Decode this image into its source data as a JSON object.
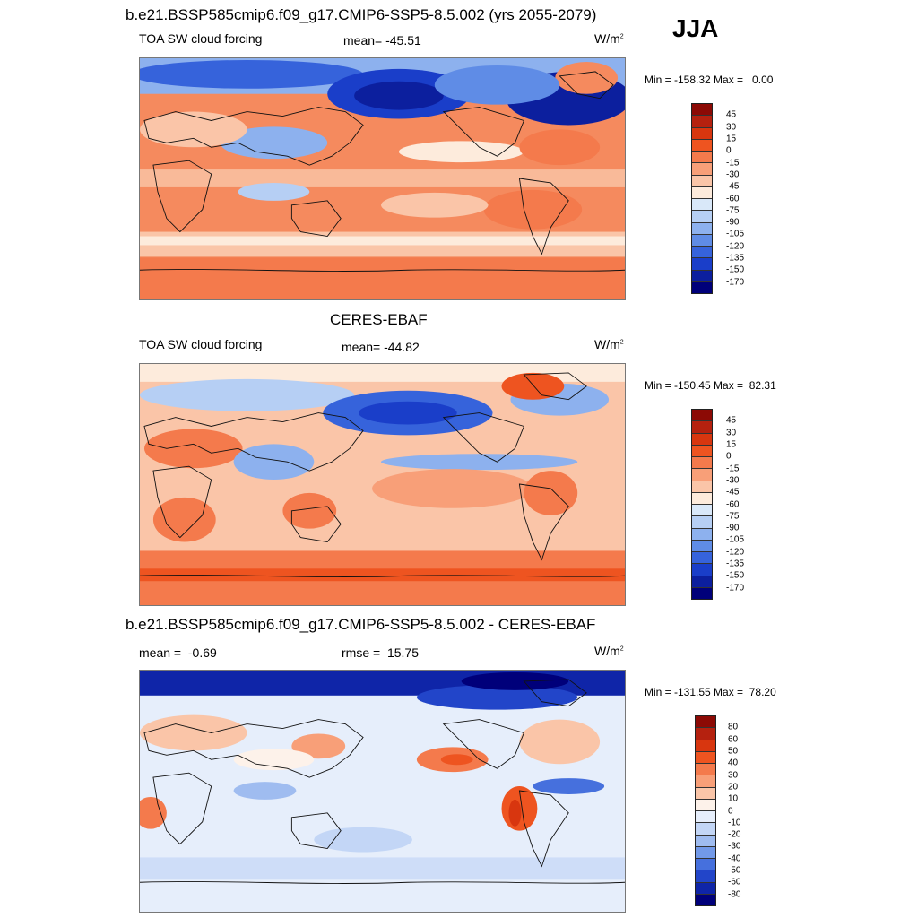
{
  "header": {
    "title": "b.e21.BSSP585cmip6.f09_g17.CMIP6-SSP5-8.5.002 (yrs 2055-2079)",
    "season": "JJA"
  },
  "panels": [
    {
      "variable": "TOA SW cloud forcing",
      "stat": "mean= -45.51",
      "units": "W/m",
      "units_sup": "2",
      "minmax": "Min = -158.32 Max =   0.00",
      "legend": {
        "labels": [
          "45",
          "30",
          "15",
          "0",
          "-15",
          "-30",
          "-45",
          "-60",
          "-75",
          "-90",
          "-105",
          "-120",
          "-135",
          "-150",
          "-170"
        ],
        "colors": [
          "#8c0a05",
          "#b5210f",
          "#d8360f",
          "#ee5420",
          "#f47a4c",
          "#f89f78",
          "#fac5a8",
          "#fdebdc",
          "#d9e8f9",
          "#b6cff4",
          "#8db1ee",
          "#5f8ce6",
          "#3663db",
          "#1a3ec9",
          "#0c1f9e",
          "#00007a"
        ]
      }
    },
    {
      "title": "CERES-EBAF",
      "variable": "TOA SW cloud forcing",
      "stat": "mean= -44.82",
      "units": "W/m",
      "units_sup": "2",
      "minmax": "Min = -150.45 Max =  82.31",
      "legend": {
        "labels": [
          "45",
          "30",
          "15",
          "0",
          "-15",
          "-30",
          "-45",
          "-60",
          "-75",
          "-90",
          "-105",
          "-120",
          "-135",
          "-150",
          "-170"
        ],
        "colors": [
          "#8c0a05",
          "#b5210f",
          "#d8360f",
          "#ee5420",
          "#f47a4c",
          "#f89f78",
          "#fac5a8",
          "#fdebdc",
          "#d9e8f9",
          "#b6cff4",
          "#8db1ee",
          "#5f8ce6",
          "#3663db",
          "#1a3ec9",
          "#0c1f9e",
          "#00007a"
        ]
      }
    },
    {
      "title": "b.e21.BSSP585cmip6.f09_g17.CMIP6-SSP5-8.5.002 - CERES-EBAF",
      "stat": "mean =  -0.69",
      "rmse": "rmse =  15.75",
      "units": "W/m",
      "units_sup": "2",
      "minmax": "Min = -131.55 Max =  78.20",
      "legend": {
        "labels": [
          "80",
          "60",
          "50",
          "40",
          "30",
          "20",
          "10",
          "0",
          "-10",
          "-20",
          "-30",
          "-40",
          "-50",
          "-60",
          "-80"
        ],
        "colors": [
          "#8c0a05",
          "#b5210f",
          "#d8360f",
          "#ee5420",
          "#f47a4c",
          "#f89f78",
          "#fac5a8",
          "#fdf2ea",
          "#e6eefb",
          "#c3d6f6",
          "#9fbcf0",
          "#7299e8",
          "#4670dd",
          "#2245c9",
          "#0f25a8",
          "#00007a"
        ]
      }
    }
  ]
}
